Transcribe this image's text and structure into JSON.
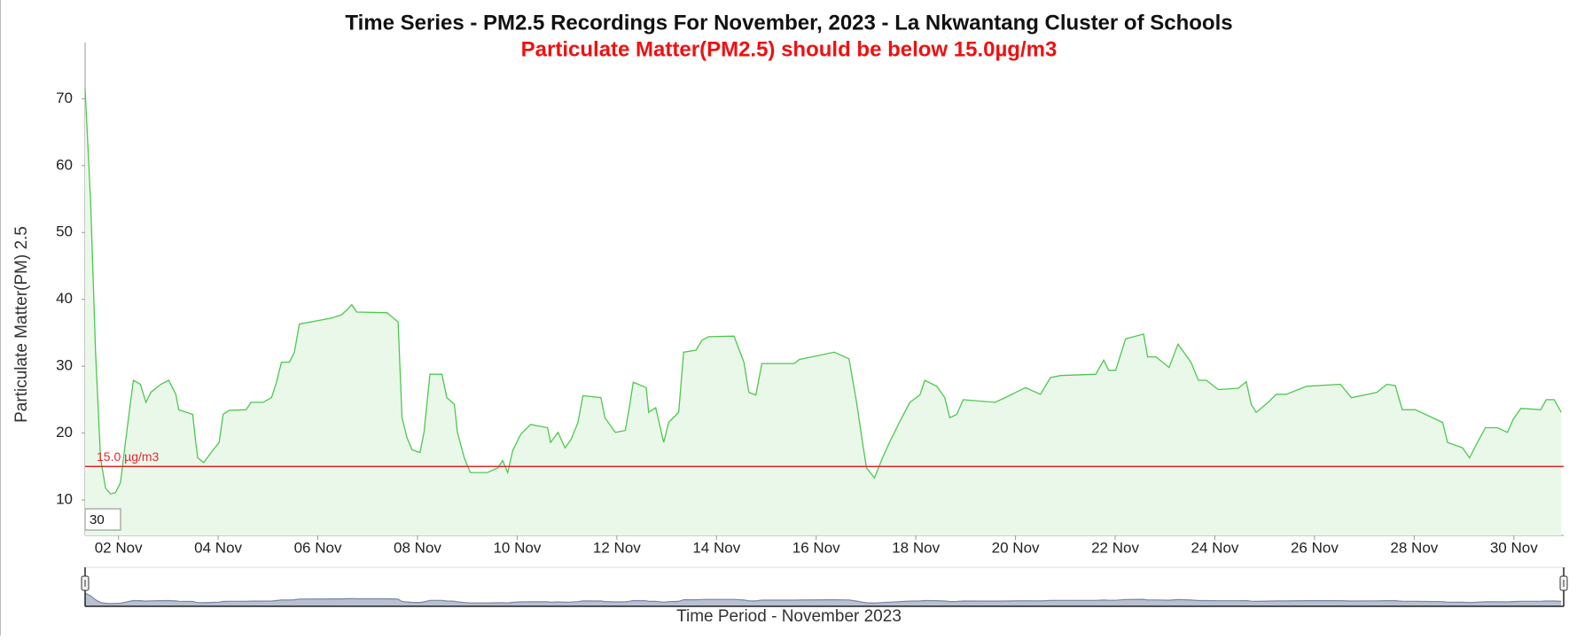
{
  "chart_data": {
    "type": "line",
    "title": "Time Series - PM2.5 Recordings For November, 2023 - La Nkwantang Cluster of Schools",
    "subtitle": "Particulate Matter(PM2.5) should be below 15.0µg/m3",
    "y_label": "Particulate Matter(PM) 2.5",
    "x_label": "Time Period - November 2023",
    "zoom_input": "30",
    "color": "#4cc94c",
    "fill": "#eaf8ea",
    "navigator_color": "#7a86a3",
    "navigator_fill": "#b9c0d2",
    "threshold": {
      "value": 15,
      "label": "15.0 µg/m3",
      "color": "#e8262a"
    },
    "x": [
      1.33,
      1.44,
      1.54,
      1.64,
      1.74,
      1.84,
      1.94,
      2.04,
      2.14,
      2.24,
      2.3,
      2.44,
      2.55,
      2.65,
      2.85,
      3.01,
      3.15,
      3.21,
      3.49,
      3.55,
      3.59,
      3.71,
      3.86,
      4.02,
      4.1,
      4.22,
      4.56,
      4.66,
      4.9,
      5.07,
      5.17,
      5.27,
      5.43,
      5.53,
      5.63,
      6.28,
      6.48,
      6.58,
      6.68,
      6.78,
      7.39,
      7.61,
      7.69,
      7.79,
      7.89,
      8.05,
      8.13,
      8.25,
      8.49,
      8.59,
      8.74,
      8.8,
      8.94,
      9.06,
      9.4,
      9.61,
      9.71,
      9.81,
      9.91,
      10.07,
      10.27,
      10.61,
      10.67,
      10.82,
      10.96,
      11.08,
      11.22,
      11.32,
      11.68,
      11.76,
      11.97,
      12.17,
      12.25,
      12.33,
      12.59,
      12.64,
      12.78,
      12.94,
      13.04,
      13.24,
      13.34,
      13.59,
      13.71,
      13.84,
      14.35,
      14.55,
      14.65,
      14.79,
      14.91,
      15.56,
      15.66,
      16.36,
      16.66,
      16.81,
      16.93,
      17.01,
      17.17,
      17.33,
      17.47,
      17.67,
      17.88,
      18.08,
      18.18,
      18.42,
      18.58,
      18.68,
      18.82,
      18.95,
      19.59,
      19.79,
      20.2,
      20.5,
      20.7,
      20.9,
      21.61,
      21.77,
      21.87,
      22.01,
      22.21,
      22.57,
      22.65,
      22.82,
      23.08,
      23.26,
      23.52,
      23.67,
      23.83,
      24.07,
      24.47,
      24.63,
      24.73,
      24.83,
      25.07,
      25.23,
      25.43,
      25.84,
      26.52,
      26.74,
      27.25,
      27.45,
      27.62,
      27.76,
      28.02,
      28.57,
      28.67,
      28.97,
      29.11,
      29.27,
      29.43,
      29.67,
      29.87,
      29.99,
      30.14,
      30.54,
      30.65,
      30.81,
      30.95
    ],
    "values": [
      71.5,
      54.7,
      32.1,
      16.3,
      11.8,
      10.9,
      11.1,
      12.6,
      18.6,
      24.6,
      27.9,
      27.3,
      24.6,
      26.1,
      27.3,
      27.9,
      25.8,
      23.5,
      22.8,
      18.6,
      16.3,
      15.6,
      17.1,
      18.6,
      22.8,
      23.4,
      23.5,
      24.6,
      24.6,
      25.3,
      27.6,
      30.6,
      30.6,
      32.1,
      36.3,
      37.2,
      37.7,
      38.4,
      39.2,
      38.1,
      38.0,
      36.6,
      22.3,
      19.3,
      17.5,
      17.1,
      20.1,
      28.8,
      28.8,
      25.3,
      24.3,
      20.1,
      16.3,
      14.1,
      14.1,
      14.8,
      15.9,
      14.1,
      17.4,
      19.8,
      21.3,
      20.8,
      18.6,
      20.1,
      17.8,
      19.0,
      21.6,
      25.6,
      25.3,
      22.3,
      20.1,
      20.4,
      23.8,
      27.6,
      26.8,
      23.1,
      23.8,
      18.6,
      21.6,
      23.1,
      32.1,
      32.4,
      33.9,
      34.4,
      34.5,
      30.6,
      26.1,
      25.7,
      30.4,
      30.4,
      31.0,
      32.1,
      31.1,
      24.6,
      18.6,
      14.8,
      13.3,
      16.3,
      18.6,
      21.6,
      24.6,
      25.7,
      27.9,
      27.0,
      25.3,
      22.3,
      22.8,
      25.0,
      24.6,
      25.3,
      26.8,
      25.8,
      28.3,
      28.6,
      28.8,
      30.9,
      29.4,
      29.4,
      34.1,
      34.8,
      31.4,
      31.4,
      29.8,
      33.3,
      30.6,
      27.9,
      27.9,
      26.5,
      26.7,
      27.7,
      24.3,
      23.1,
      24.6,
      25.8,
      25.8,
      27.0,
      27.3,
      25.3,
      26.1,
      27.3,
      27.1,
      23.5,
      23.5,
      21.6,
      18.6,
      17.8,
      16.3,
      18.6,
      20.8,
      20.8,
      20.1,
      22.1,
      23.7,
      23.5,
      25.0,
      25.0,
      23.1
    ],
    "xlim": [
      1.33,
      31.0
    ],
    "xticks": [
      {
        "value": 2,
        "label": "02 Nov"
      },
      {
        "value": 4,
        "label": "04 Nov"
      },
      {
        "value": 6,
        "label": "06 Nov"
      },
      {
        "value": 8,
        "label": "08 Nov"
      },
      {
        "value": 10,
        "label": "10 Nov"
      },
      {
        "value": 12,
        "label": "12 Nov"
      },
      {
        "value": 14,
        "label": "14 Nov"
      },
      {
        "value": 16,
        "label": "16 Nov"
      },
      {
        "value": 18,
        "label": "18 Nov"
      },
      {
        "value": 20,
        "label": "20 Nov"
      },
      {
        "value": 22,
        "label": "22 Nov"
      },
      {
        "value": 24,
        "label": "24 Nov"
      },
      {
        "value": 26,
        "label": "26 Nov"
      },
      {
        "value": 28,
        "label": "28 Nov"
      },
      {
        "value": 30,
        "label": "30 Nov"
      }
    ],
    "ylim": [
      4.7,
      78.4
    ],
    "yticks": [
      10,
      20,
      30,
      40,
      50,
      60,
      70
    ],
    "grid": false
  }
}
